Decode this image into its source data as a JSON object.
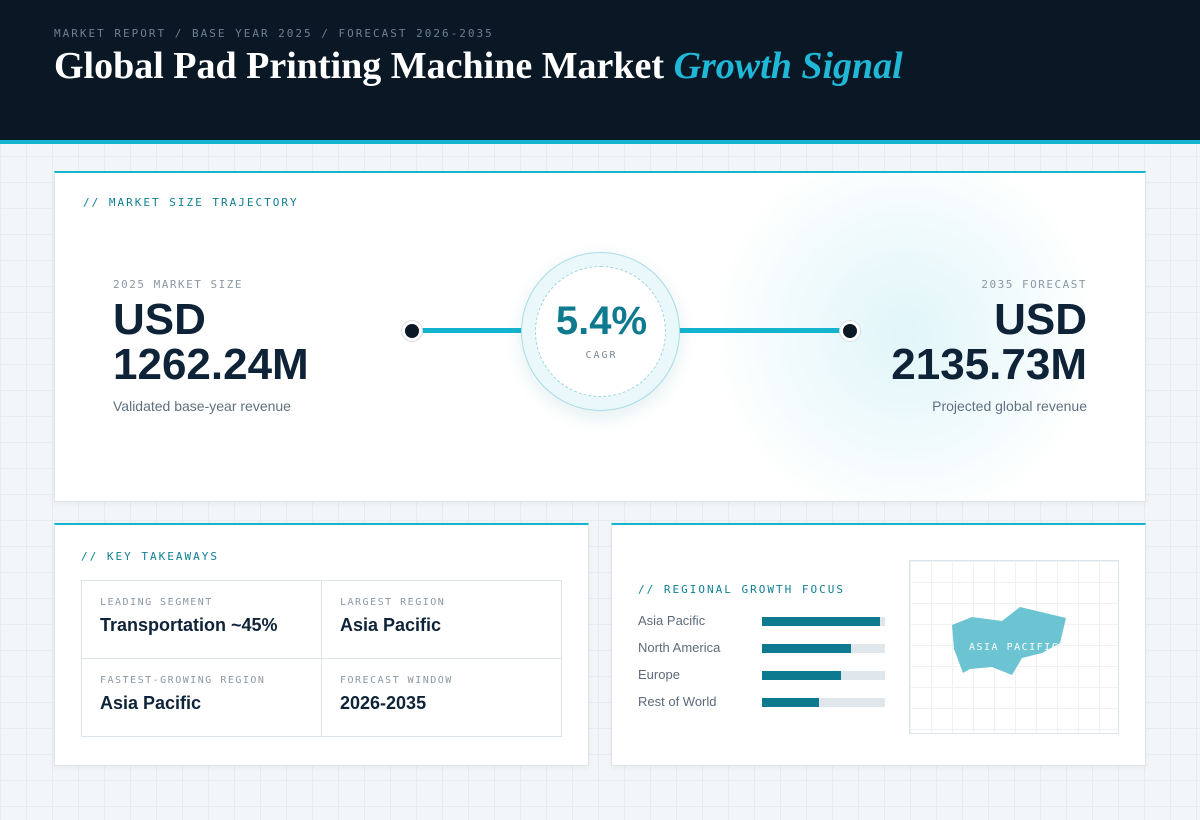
{
  "header": {
    "breadcrumb": "MARKET REPORT / BASE YEAR 2025 / FORECAST 2026-2035",
    "title_main": "Global Pad Printing Machine Market",
    "title_accent": "Growth Signal"
  },
  "trajectory": {
    "section_label": "// MARKET SIZE TRAJECTORY",
    "start": {
      "label": "2025 MARKET SIZE",
      "value_line1": "USD",
      "value_line2": "1262.24M",
      "caption": "Validated base-year revenue"
    },
    "cagr": {
      "value": "5.4%",
      "label": "CAGR"
    },
    "end": {
      "label": "2035 FORECAST",
      "value_line1": "USD",
      "value_line2": "2135.73M",
      "caption": "Projected global revenue"
    }
  },
  "takeaways": {
    "section_label": "// KEY TAKEAWAYS",
    "items": [
      {
        "label": "LEADING SEGMENT",
        "value": "Transportation ~45%"
      },
      {
        "label": "LARGEST REGION",
        "value": "Asia Pacific"
      },
      {
        "label": "FASTEST-GROWING REGION",
        "value": "Asia Pacific"
      },
      {
        "label": "FORECAST WINDOW",
        "value": "2026-2035"
      }
    ]
  },
  "regional": {
    "section_label": "// REGIONAL GROWTH FOCUS",
    "regions": [
      {
        "name": "Asia Pacific",
        "level": 0.96
      },
      {
        "name": "North America",
        "level": 0.72
      },
      {
        "name": "Europe",
        "level": 0.64
      },
      {
        "name": "Rest of World",
        "level": 0.46
      }
    ],
    "map_label": "ASIA PACIFIC",
    "map_color": "#6cc3d1"
  },
  "colors": {
    "accent": "#14b4cf",
    "accent_dark": "#0d7a90",
    "header_bg": "#0a1826",
    "text_dark": "#0e2338"
  }
}
